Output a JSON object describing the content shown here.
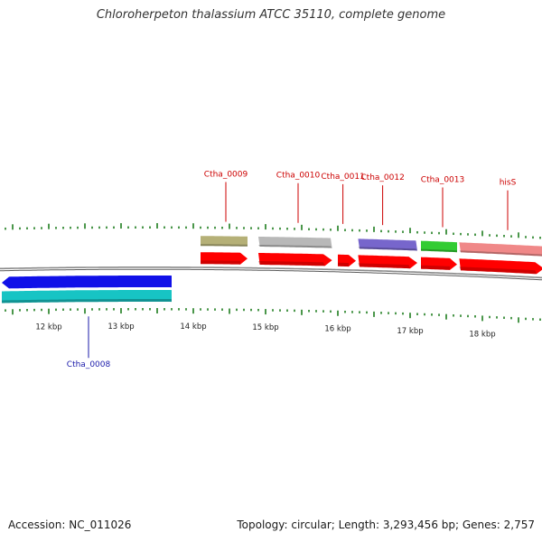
{
  "header": {
    "title": "Chloroherpeton thalassium ATCC 35110, complete genome"
  },
  "footer": {
    "accession": "Accession: NC_011026",
    "summary": "Topology: circular; Length: 3,293,456 bp; Genes: 2,757"
  },
  "colors": {
    "backbone": "#8a8a8a",
    "tick": "#1e7d1e",
    "cds": "#ff0000",
    "top_label": "#cc0000",
    "bottom_label": "#1a1aaa",
    "coordinate_label": "#222222"
  },
  "chart_data": {
    "type": "genome-map",
    "coordinate_labels": [
      {
        "kb": 12,
        "label": "12 kbp"
      },
      {
        "kb": 13,
        "label": "13 kbp"
      },
      {
        "kb": 14,
        "label": "14 kbp"
      },
      {
        "kb": 15,
        "label": "15 kbp"
      },
      {
        "kb": 16,
        "label": "16 kbp"
      },
      {
        "kb": 17,
        "label": "17 kbp"
      },
      {
        "kb": 18,
        "label": "18 kbp"
      }
    ],
    "genes": [
      {
        "name": "Ctha_0008",
        "start_kb": 11.35,
        "end_kb": 13.7,
        "strand": "reverse",
        "color": "#1010e8",
        "label_kb": 12.55
      },
      {
        "name": "Ctha_0009",
        "start_kb": 14.1,
        "end_kb": 14.75,
        "strand": "forward",
        "color": "#b5b077",
        "label_kb": 14.45
      },
      {
        "name": "Ctha_0010",
        "start_kb": 14.9,
        "end_kb": 15.92,
        "strand": "forward",
        "color": "#b8b8b8",
        "label_kb": 15.45
      },
      {
        "name": "Ctha_0011",
        "start_kb": 16.0,
        "end_kb": 16.25,
        "strand": "forward",
        "color": null,
        "label_kb": 16.07
      },
      {
        "name": "Ctha_0012",
        "start_kb": 16.28,
        "end_kb": 17.1,
        "strand": "forward",
        "color": "#7766cc",
        "label_kb": 16.62
      },
      {
        "name": "Ctha_0013",
        "start_kb": 17.15,
        "end_kb": 17.65,
        "strand": "forward",
        "color": "#33cc33",
        "label_kb": 17.45
      },
      {
        "name": "hisS",
        "start_kb": 17.68,
        "end_kb": 18.9,
        "strand": "forward",
        "color": "#f08888",
        "label_kb": 18.35
      }
    ]
  }
}
